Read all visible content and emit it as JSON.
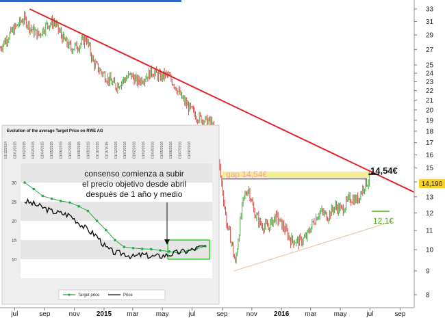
{
  "main_chart": {
    "type": "line",
    "y_axis": {
      "scale": "log",
      "range": [
        7.5,
        34.5
      ],
      "ticks": [
        8,
        9,
        10,
        11,
        12,
        13,
        14,
        15,
        16,
        17,
        18,
        19,
        20,
        21,
        22,
        23,
        24,
        25,
        27,
        29,
        31,
        33
      ]
    },
    "x_axis": {
      "range": [
        "2014-06-01",
        "2016-09-30"
      ],
      "ticks": [
        {
          "label": "jul",
          "date": "2014-07-01",
          "bold": false
        },
        {
          "label": "sep",
          "date": "2014-09-01",
          "bold": false
        },
        {
          "label": "nov",
          "date": "2014-11-01",
          "bold": false
        },
        {
          "label": "2015",
          "date": "2015-01-01",
          "bold": true
        },
        {
          "label": "mar",
          "date": "2015-03-01",
          "bold": false
        },
        {
          "label": "may",
          "date": "2015-05-01",
          "bold": false
        },
        {
          "label": "jul",
          "date": "2015-07-01",
          "bold": false
        },
        {
          "label": "sep",
          "date": "2015-09-01",
          "bold": false
        },
        {
          "label": "nov",
          "date": "2015-11-01",
          "bold": false
        },
        {
          "label": "2016",
          "date": "2016-01-01",
          "bold": true
        },
        {
          "label": "mar",
          "date": "2016-03-01",
          "bold": false
        },
        {
          "label": "may",
          "date": "2016-05-01",
          "bold": false
        },
        {
          "label": "jul",
          "date": "2016-07-01",
          "bold": false
        },
        {
          "label": "sep",
          "date": "2016-09-01",
          "bold": false
        }
      ]
    },
    "price_series": [
      [
        "2014-06-01",
        27.2
      ],
      [
        "2014-06-20",
        29.0
      ],
      [
        "2014-07-05",
        30.3
      ],
      [
        "2014-07-20",
        31.5
      ],
      [
        "2014-08-05",
        29.8
      ],
      [
        "2014-08-20",
        29.0
      ],
      [
        "2014-09-05",
        30.5
      ],
      [
        "2014-09-20",
        31.0
      ],
      [
        "2014-10-10",
        28.3
      ],
      [
        "2014-10-25",
        27.2
      ],
      [
        "2014-11-10",
        27.5
      ],
      [
        "2014-11-25",
        28.6
      ],
      [
        "2014-12-10",
        25.3
      ],
      [
        "2014-12-25",
        24.2
      ],
      [
        "2015-01-10",
        23.3
      ],
      [
        "2015-01-25",
        22.5
      ],
      [
        "2015-02-10",
        23.2
      ],
      [
        "2015-02-25",
        23.8
      ],
      [
        "2015-03-10",
        23.0
      ],
      [
        "2015-03-25",
        23.5
      ],
      [
        "2015-04-10",
        24.2
      ],
      [
        "2015-04-25",
        23.6
      ],
      [
        "2015-05-10",
        23.8
      ],
      [
        "2015-05-25",
        22.8
      ],
      [
        "2015-06-10",
        21.2
      ],
      [
        "2015-06-25",
        20.2
      ],
      [
        "2015-07-10",
        19.4
      ],
      [
        "2015-07-25",
        19.0
      ],
      [
        "2015-08-10",
        18.8
      ],
      [
        "2015-08-20",
        16.8
      ],
      [
        "2015-09-01",
        13.6
      ],
      [
        "2015-09-10",
        11.4
      ],
      [
        "2015-09-20",
        10.4
      ],
      [
        "2015-09-28",
        9.3
      ],
      [
        "2015-10-05",
        10.8
      ],
      [
        "2015-10-15",
        12.9
      ],
      [
        "2015-10-25",
        13.6
      ],
      [
        "2015-11-05",
        12.1
      ],
      [
        "2015-11-20",
        11.3
      ],
      [
        "2015-12-05",
        11.2
      ],
      [
        "2015-12-20",
        11.8
      ],
      [
        "2016-01-05",
        11.2
      ],
      [
        "2016-01-20",
        10.5
      ],
      [
        "2016-02-05",
        10.4
      ],
      [
        "2016-02-20",
        10.6
      ],
      [
        "2016-03-05",
        11.4
      ],
      [
        "2016-03-20",
        12.1
      ],
      [
        "2016-04-05",
        11.8
      ],
      [
        "2016-04-20",
        12.4
      ],
      [
        "2016-05-05",
        12.2
      ],
      [
        "2016-05-20",
        12.9
      ],
      [
        "2016-06-05",
        12.8
      ],
      [
        "2016-06-20",
        13.8
      ],
      [
        "2016-07-01",
        14.19
      ]
    ],
    "last_price": 14.19,
    "last_price_label": "14,190",
    "downtrend_line": [
      [
        "2014-08-01",
        33.0
      ],
      [
        "2016-09-30",
        13.3
      ]
    ],
    "support_line": [
      [
        "2015-09-25",
        9.0
      ],
      [
        "2016-08-15",
        11.5
      ]
    ],
    "gap_zone": {
      "from": "2015-09-01",
      "to": "2016-07-01",
      "value": 14.54
    },
    "resistance_line": {
      "from": "2015-09-01",
      "to": "2016-06-25",
      "value": 14.2
    },
    "target_line": {
      "from": "2016-06-28",
      "to": "2016-07-20",
      "value": 14.54
    },
    "support_mark": {
      "from": "2016-07-05",
      "to": "2016-08-10",
      "value": 12.1
    },
    "labels": {
      "gap": "gap 14,54€",
      "target": "14,54€",
      "support": "12,1€"
    }
  },
  "chart_data": {
    "type": "line",
    "title": "Evolution of the average Target Price on RWE AG",
    "y_range": [
      5,
      35
    ],
    "y_ticks": [
      10,
      15,
      20,
      25,
      30
    ],
    "date_labels": [
      "01/12/2014",
      "01/01/2015",
      "01/02/2015",
      "01/03/2015",
      "01/04/2015",
      "01/05/2015",
      "01/06/2015",
      "01/07/2015",
      "01/08/2015",
      "01/09/2015",
      "01/10/2015",
      "01/11/2015",
      "01/12/2015",
      "01/01/2016",
      "01/02/2016",
      "01/03/2016",
      "01/04/2016",
      "01/05/2016",
      "01/06/2016",
      "01/07/2016",
      "01/08/2016"
    ],
    "series": [
      {
        "name": "Target price",
        "color": "#22aa44",
        "values": [
          30.0,
          28.3,
          26.5,
          25.8,
          25.2,
          24.8,
          23.8,
          22.6,
          20.0,
          17.6,
          15.0,
          13.2,
          12.9,
          12.7,
          12.6,
          12.3,
          12.0,
          11.6,
          12.1,
          12.7,
          13.4
        ]
      },
      {
        "name": "Price",
        "color": "#111111",
        "values": [
          25.2,
          24.4,
          23.5,
          22.5,
          22.0,
          21.5,
          19.5,
          17.6,
          16.0,
          13.0,
          11.6,
          11.5,
          10.6,
          11.2,
          10.7,
          10.8,
          11.2,
          11.8,
          12.1,
          12.8,
          13.5
        ]
      }
    ],
    "highlight_box": {
      "from_index": 16,
      "to_index": 20,
      "low": 10,
      "high": 15
    },
    "annotation": [
      "consenso comienza a subir",
      "el precio objetivo desde abril",
      "después de 1 año y medio"
    ],
    "legend": [
      "Target price",
      "Price"
    ]
  }
}
